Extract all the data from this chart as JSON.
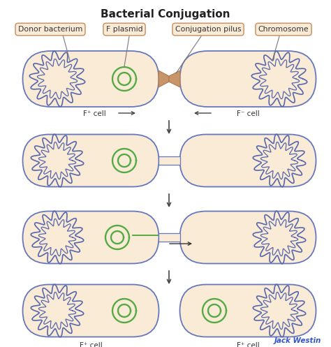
{
  "title": "Bacterial Conjugation",
  "title_fontsize": 11,
  "background_color": "#ffffff",
  "cell_fill": "#faebd7",
  "cell_edge_color": "#6677bb",
  "chromosome_edge_color": "#5566aa",
  "plasmid_color": "#55aa44",
  "pilus_fill": "#c8956a",
  "pilus_edge": "#b07850",
  "arrow_color": "#444444",
  "jack_westin_color": "#3355cc",
  "label_fill": "#faebd7",
  "label_edge": "#c8956a",
  "labels": {
    "donor": "Donor bacterium",
    "plasmid": "F plasmid",
    "pilus": "Conjugation pilus",
    "chromosome": "Chromosome"
  }
}
